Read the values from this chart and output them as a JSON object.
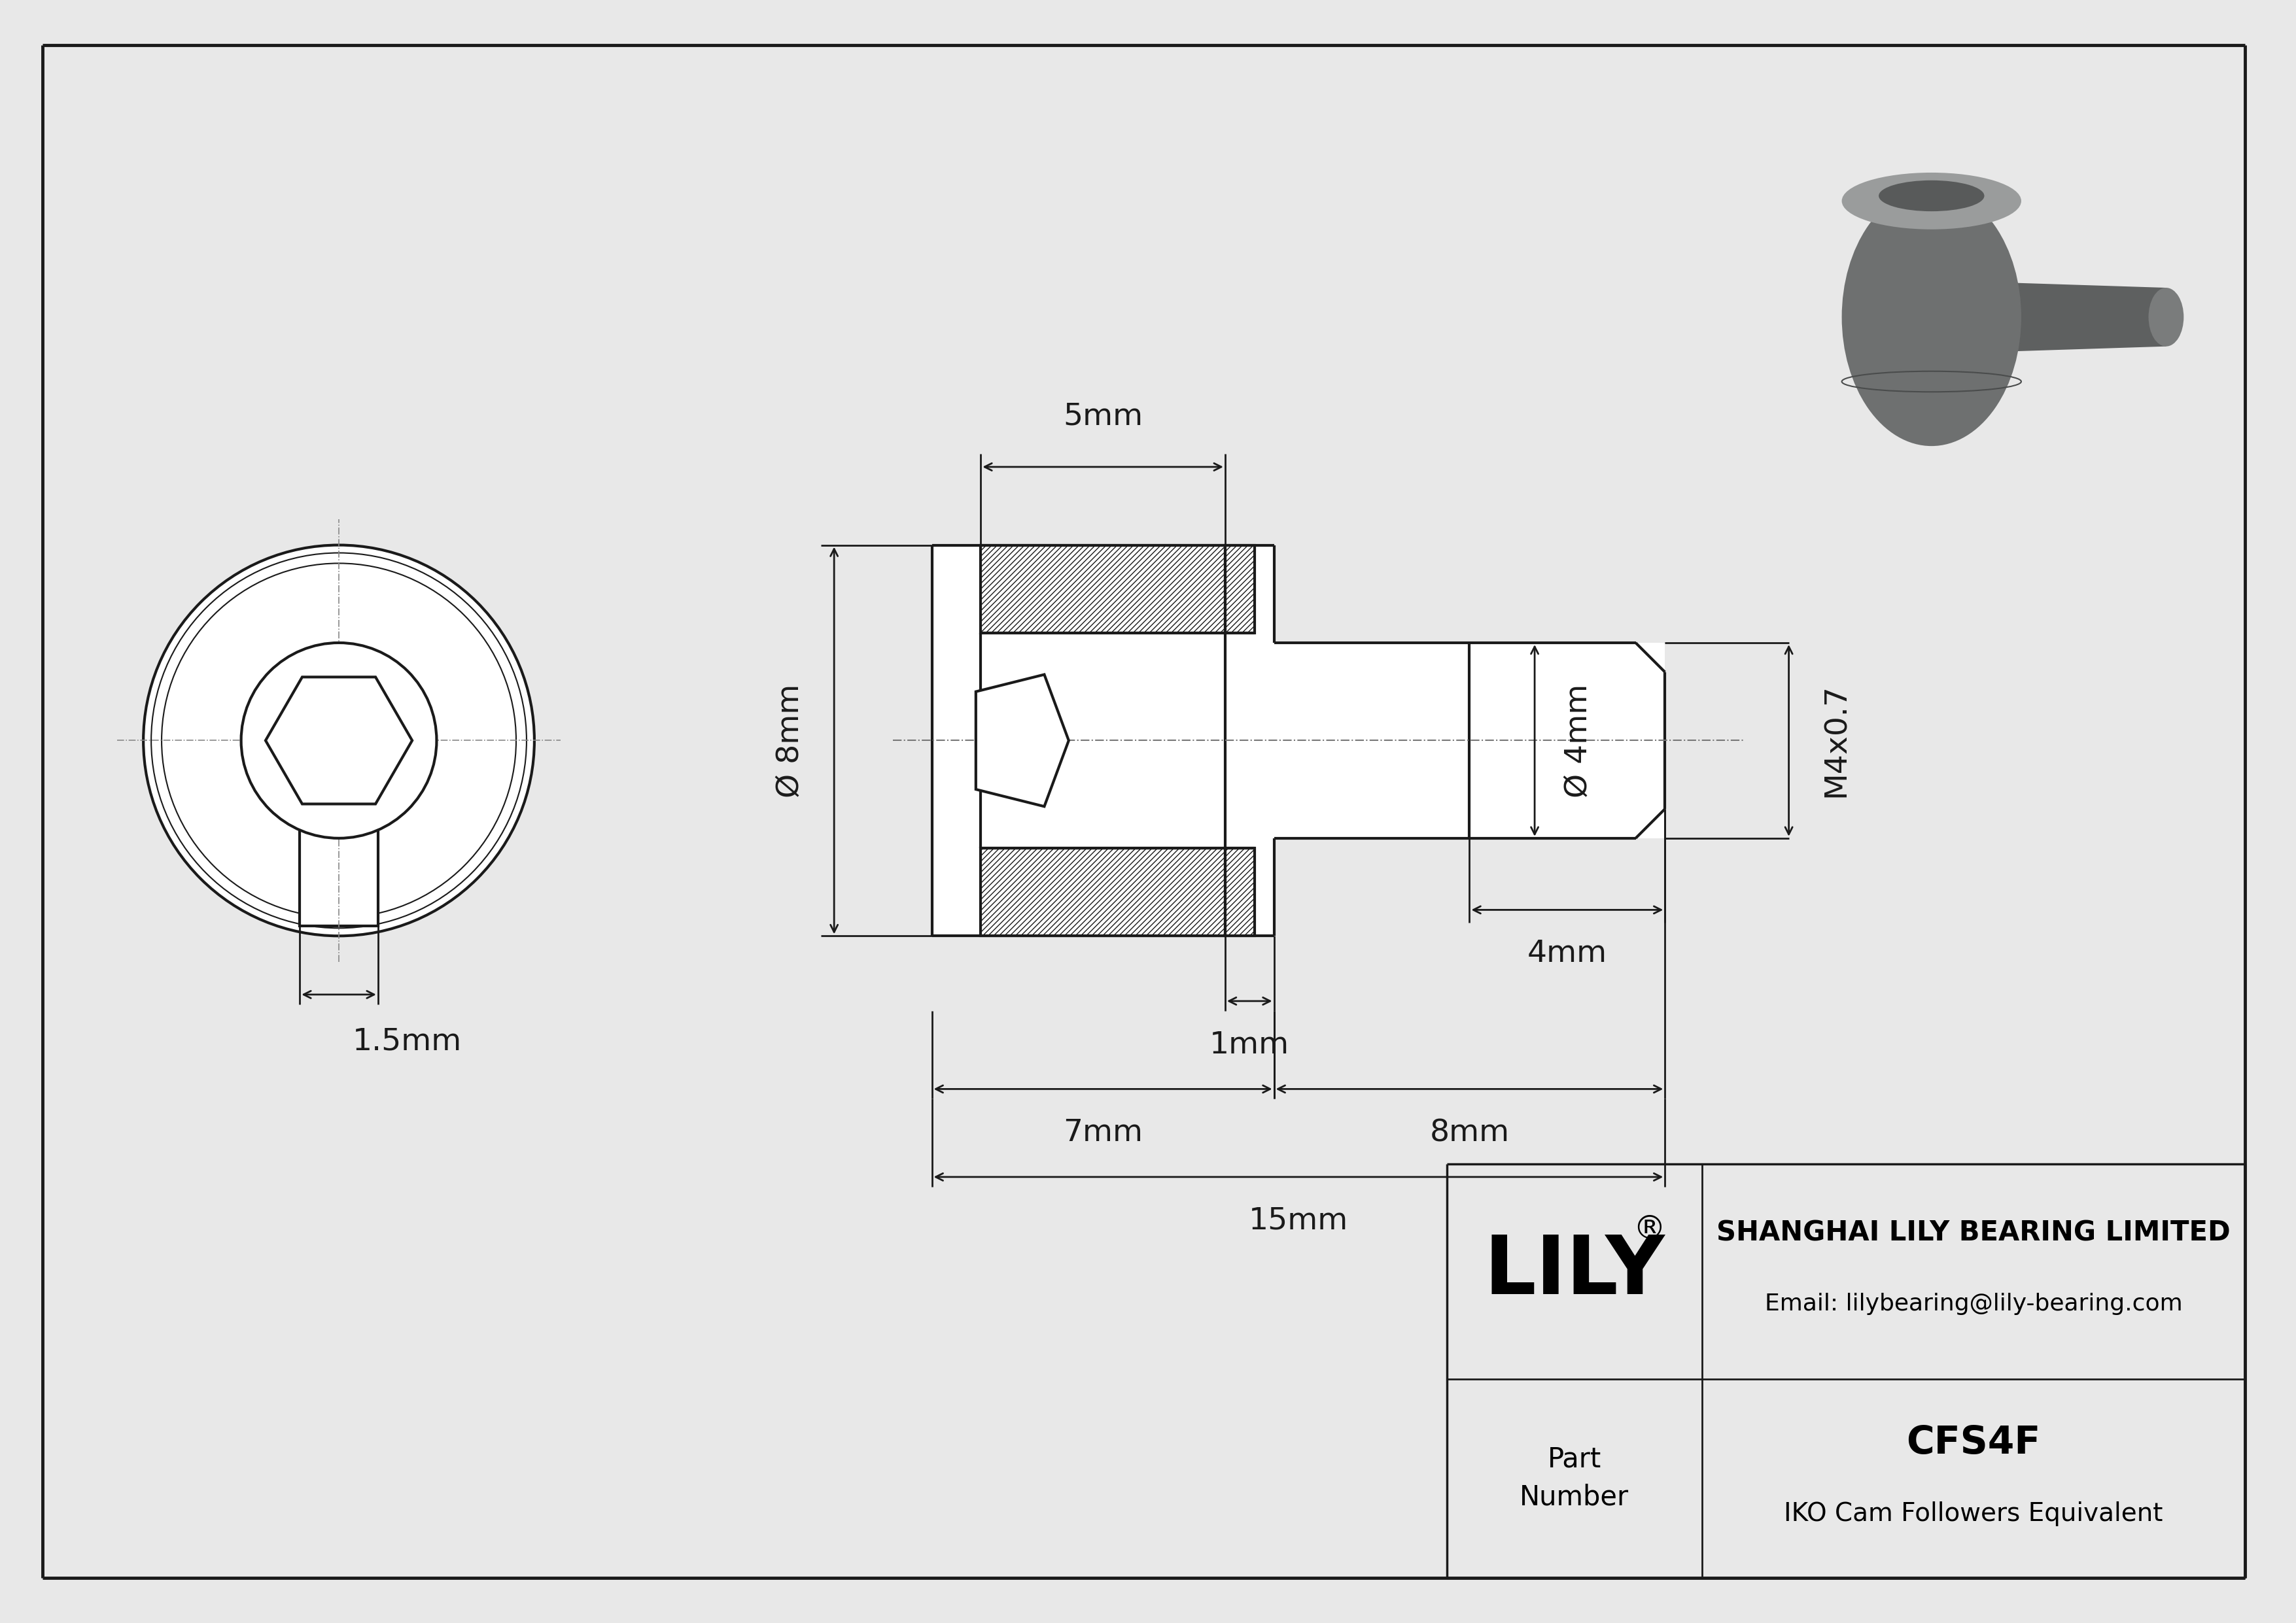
{
  "bg_color": "#e8e8e8",
  "line_color": "#1a1a1a",
  "dim_color": "#1a1a1a",
  "title_company": "SHANGHAI LILY BEARING LIMITED",
  "title_email": "Email: lilybearing@lily-bearing.com",
  "part_label": "Part\nNumber",
  "part_name": "CFS4F",
  "part_equiv": "IKO Cam Followers Equivalent",
  "brand": "LILY",
  "brand_reg": "®",
  "dim_5mm": "5mm",
  "dim_8mm": "Ø 8mm",
  "dim_4mm_v": "Ø 4mm",
  "dim_4mm_h": "4mm",
  "dim_1mm": "1mm",
  "dim_7mm": "7mm",
  "dim_8mm_h": "8mm",
  "dim_15mm": "15mm",
  "dim_15mm_label": "1.5mm",
  "dim_M4x07": "M4x0.7",
  "lw": 3.0,
  "dim_lw": 2.0,
  "thin_lw": 1.5
}
